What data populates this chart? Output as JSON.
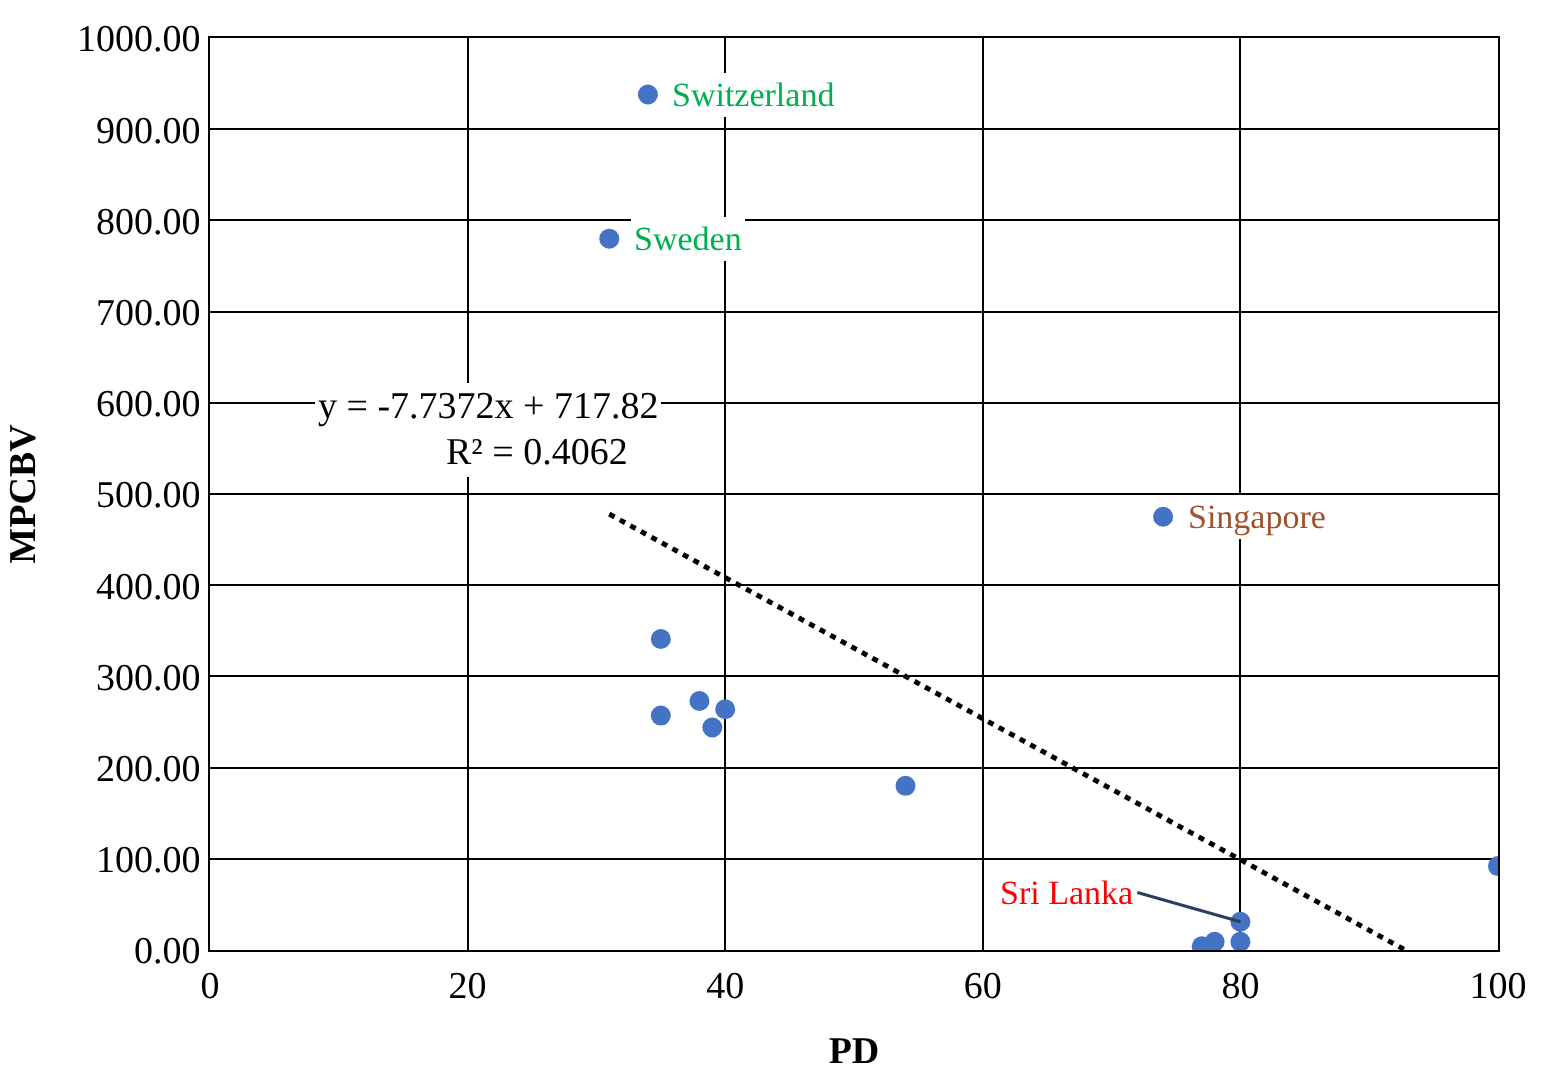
{
  "chart_data": {
    "type": "scatter",
    "xlabel": "PD",
    "ylabel": "MPCBV",
    "series": [
      {
        "color": "#4472c4",
        "marker": "circle",
        "x": [
          34,
          31,
          74,
          35,
          35,
          38,
          40,
          39,
          54,
          100,
          80,
          80,
          78,
          77
        ],
        "values": [
          938,
          780,
          475,
          341,
          257,
          273,
          264,
          244,
          180,
          92,
          31,
          9,
          9,
          4
        ]
      },
      {
        "type": "line",
        "color": "#000000",
        "line_style": "dotted",
        "marker": "none",
        "x": [
          31,
          92.8
        ],
        "values": [
          478,
          0
        ]
      }
    ],
    "xlim": [
      0,
      100
    ],
    "xticks": [
      0,
      20,
      40,
      60,
      80,
      100
    ],
    "ylim": [
      0,
      1000
    ],
    "yticks": [
      {
        "value": 0,
        "label": "0.00"
      },
      {
        "value": 100,
        "label": "100.00"
      },
      {
        "value": 200,
        "label": "200.00"
      },
      {
        "value": 300,
        "label": "300.00"
      },
      {
        "value": 400,
        "label": "400.00"
      },
      {
        "value": 500,
        "label": "500.00"
      },
      {
        "value": 600,
        "label": "600.00"
      },
      {
        "value": 700,
        "label": "700.00"
      },
      {
        "value": 800,
        "label": "800.00"
      },
      {
        "value": 900,
        "label": "900.00"
      },
      {
        "value": 1000,
        "label": "1000.00"
      }
    ],
    "grid": true,
    "annotations": [
      {
        "text": "Switzerland",
        "x": 34,
        "y": 938
      },
      {
        "text": "Sweden",
        "x": 31,
        "y": 780
      },
      {
        "text": "Singapore",
        "x": 74,
        "y": 475
      },
      {
        "text": "Sri Lanka",
        "x": 80,
        "y": 31
      },
      "y = -7.7372x + 717.82",
      "R² = 0.4062"
    ]
  }
}
